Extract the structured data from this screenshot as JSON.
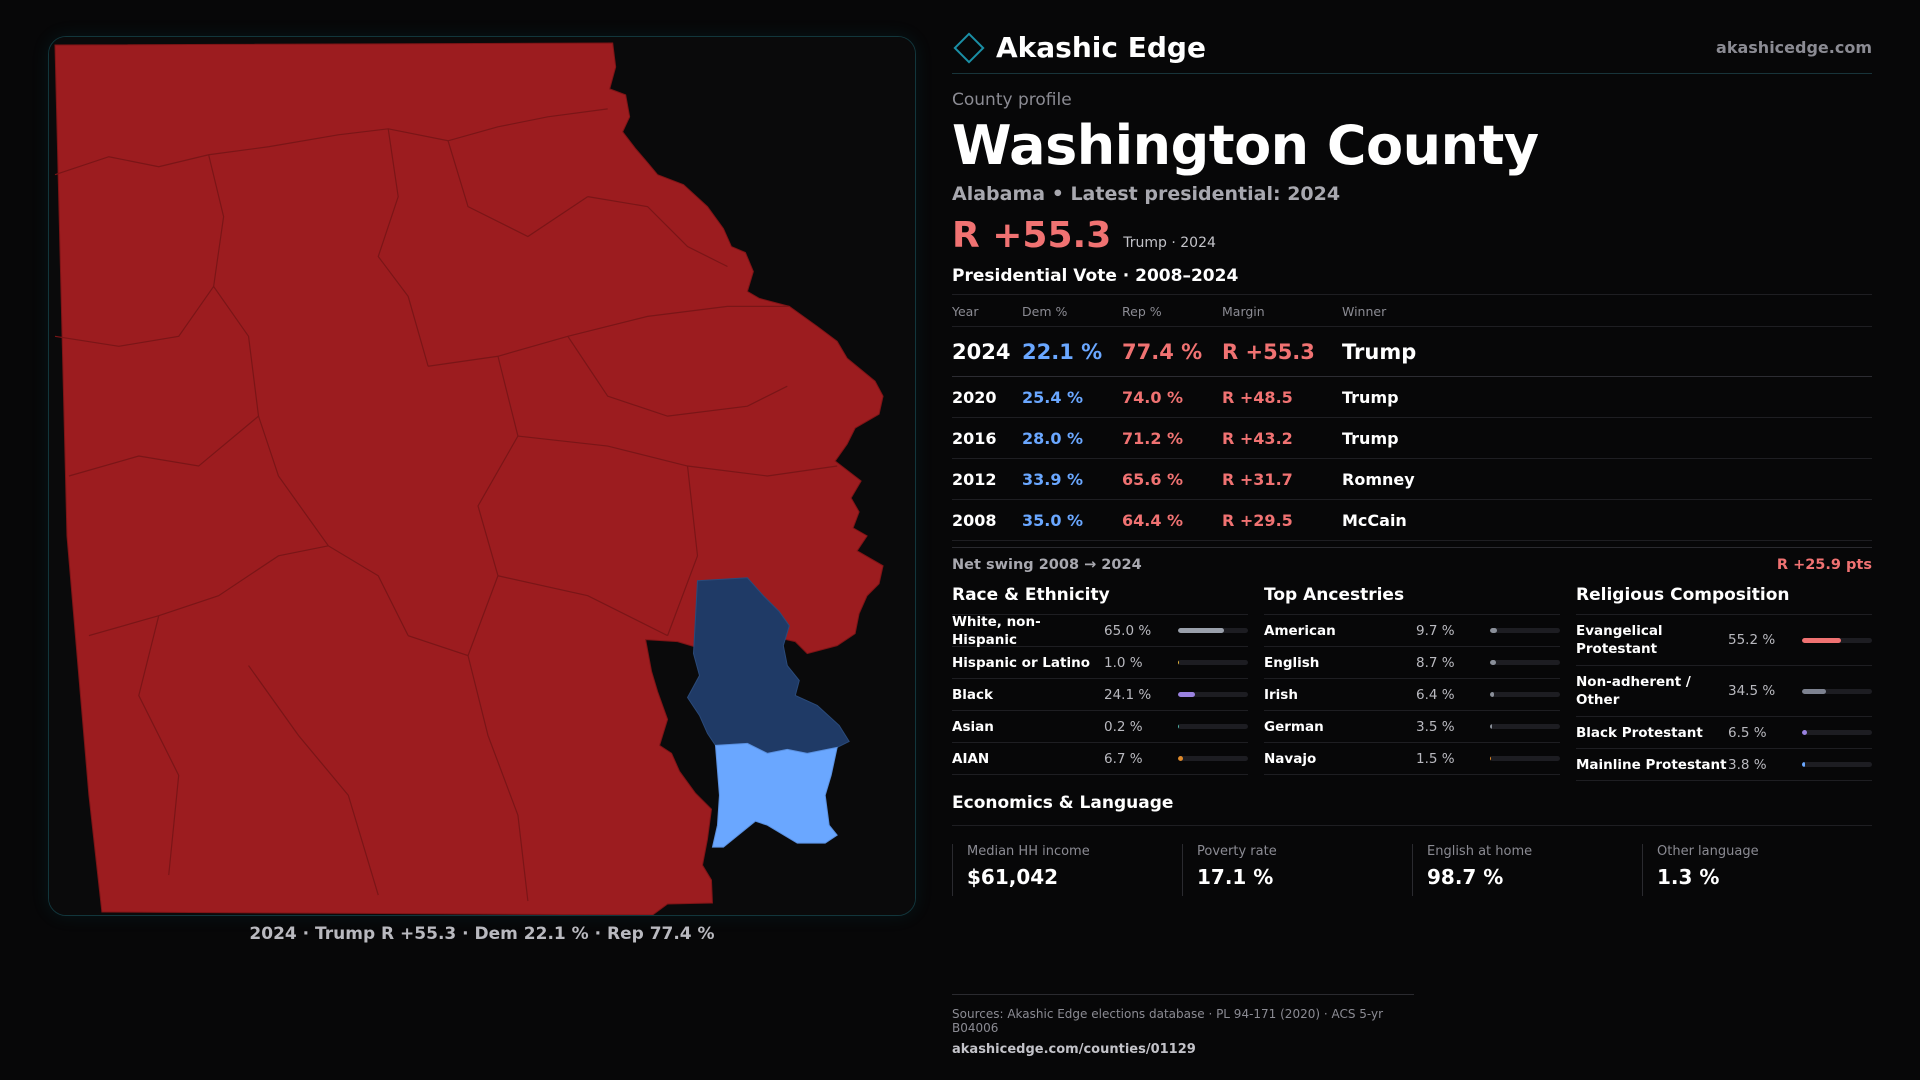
{
  "brand": {
    "name": "Akashic Edge",
    "url": "akashicedge.com",
    "icon": "diamond-logo-icon"
  },
  "profile": {
    "eyebrow": "County profile",
    "title": "Washington County",
    "subtitle": "Alabama • Latest presidential: 2024",
    "headline_margin": "R +55.3",
    "headline_note": "Trump · 2024"
  },
  "presidential": {
    "title": "Presidential Vote · 2008–2024",
    "headers": [
      "Year",
      "Dem %",
      "Rep %",
      "Margin",
      "Winner"
    ],
    "rows": [
      {
        "year": "2024",
        "dem": "22.1 %",
        "rep": "77.4 %",
        "margin": "R +55.3",
        "winner": "Trump"
      },
      {
        "year": "2020",
        "dem": "25.4 %",
        "rep": "74.0 %",
        "margin": "R +48.5",
        "winner": "Trump"
      },
      {
        "year": "2016",
        "dem": "28.0 %",
        "rep": "71.2 %",
        "margin": "R +43.2",
        "winner": "Trump"
      },
      {
        "year": "2012",
        "dem": "33.9 %",
        "rep": "65.6 %",
        "margin": "R +31.7",
        "winner": "Romney"
      },
      {
        "year": "2008",
        "dem": "35.0 %",
        "rep": "64.4 %",
        "margin": "R +29.5",
        "winner": "McCain"
      }
    ],
    "swing_label": "Net swing 2008 → 2024",
    "swing_value": "R +25.9 pts"
  },
  "race": {
    "title": "Race & Ethnicity",
    "items": [
      {
        "label": "White, non-Hispanic",
        "pct": "65.0 %",
        "value": 65.0,
        "color": "#9aa0ab"
      },
      {
        "label": "Hispanic or Latino",
        "pct": "1.0 %",
        "value": 1.0,
        "color": "#e0b23a"
      },
      {
        "label": "Black",
        "pct": "24.1 %",
        "value": 24.1,
        "color": "#9a82e0"
      },
      {
        "label": "Asian",
        "pct": "0.2 %",
        "value": 0.2,
        "color": "#4fb3a7"
      },
      {
        "label": "AIAN",
        "pct": "6.7 %",
        "value": 6.7,
        "color": "#e08a2a"
      }
    ]
  },
  "ancestry": {
    "title": "Top Ancestries",
    "items": [
      {
        "label": "American",
        "pct": "9.7 %",
        "value": 9.7,
        "color": "#8a8f99"
      },
      {
        "label": "English",
        "pct": "8.7 %",
        "value": 8.7,
        "color": "#8a8f99"
      },
      {
        "label": "Irish",
        "pct": "6.4 %",
        "value": 6.4,
        "color": "#8a8f99"
      },
      {
        "label": "German",
        "pct": "3.5 %",
        "value": 3.5,
        "color": "#8a8f99"
      },
      {
        "label": "Navajo",
        "pct": "1.5 %",
        "value": 1.5,
        "color": "#e08a2a"
      }
    ]
  },
  "religion": {
    "title": "Religious Composition",
    "items": [
      {
        "label": "Evangelical Protestant",
        "pct": "55.2 %",
        "value": 55.2,
        "color": "#f07272",
        "tall": true
      },
      {
        "label": "Non-adherent / Other",
        "pct": "34.5 %",
        "value": 34.5,
        "color": "#7d8290",
        "tall": true
      },
      {
        "label": "Black Protestant",
        "pct": "6.5 %",
        "value": 6.5,
        "color": "#9a82e0",
        "tall": false
      },
      {
        "label": "Mainline Protestant",
        "pct": "3.8 %",
        "value": 3.8,
        "color": "#6aa7ff",
        "tall": false
      }
    ]
  },
  "economics": {
    "title": "Economics & Language",
    "cards": [
      {
        "label": "Median HH income",
        "value": "$61,042"
      },
      {
        "label": "Poverty rate",
        "value": "17.1 %"
      },
      {
        "label": "English at home",
        "value": "98.7 %"
      },
      {
        "label": "Other language",
        "value": "1.3 %"
      }
    ]
  },
  "map": {
    "caption": "2024 · Trump R +55.3 · Dem 22.1 % · Rep 77.4 %",
    "colors": {
      "rep": "#9c1c1f",
      "dem_strong": "#1f3a66",
      "dem_light": "#6aa7ff",
      "border": "#7d1416",
      "background": "#0a0a0b"
    }
  },
  "sources": {
    "line": "Sources: Akashic Edge elections database · PL 94-171 (2020) · ACS 5-yr B04006",
    "url": "akashicedge.com/counties/01129"
  }
}
